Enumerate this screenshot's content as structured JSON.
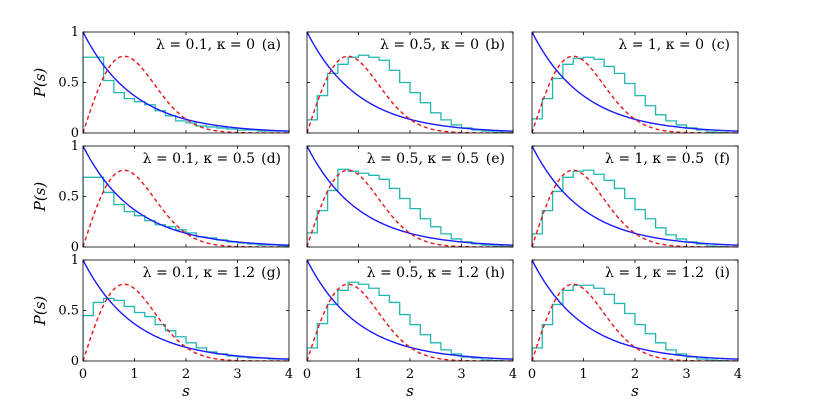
{
  "chart_data": {
    "type": "line",
    "layout": "3x3 grid of panels",
    "xlabel": "s",
    "ylabel": "P(s)",
    "xlim": [
      0,
      4
    ],
    "ylim": [
      0,
      1
    ],
    "xticks": [
      "0",
      "1",
      "2",
      "3",
      "4"
    ],
    "yticks": [
      "0",
      "0.5",
      "1"
    ],
    "colors": {
      "poisson": "#1a1aff",
      "wigner": "#e8161b",
      "histogram": "#22b8b0"
    },
    "curves": {
      "poisson": {
        "style": "solid",
        "formula": "exp(-s)"
      },
      "wigner": {
        "style": "dashed",
        "formula": "(pi/2) s exp(-pi s^2 / 4)"
      }
    },
    "panels": [
      {
        "tag": "(a)",
        "params": "λ = 0.1, κ = 0",
        "histogram": [
          0.75,
          0.75,
          0.52,
          0.4,
          0.34,
          0.31,
          0.28,
          0.22,
          0.17,
          0.12,
          0.1,
          0.07,
          0.06,
          0.05,
          0.04,
          0.03,
          0.03,
          0.02,
          0.02,
          0.02
        ]
      },
      {
        "tag": "(b)",
        "params": "λ = 0.5, κ = 0",
        "histogram": [
          0.13,
          0.37,
          0.59,
          0.68,
          0.75,
          0.77,
          0.75,
          0.72,
          0.62,
          0.5,
          0.4,
          0.3,
          0.2,
          0.13,
          0.08,
          0.05,
          0.03,
          0.02,
          0.01,
          0.005
        ]
      },
      {
        "tag": "(c)",
        "params": "λ = 1, κ = 0",
        "histogram": [
          0.14,
          0.34,
          0.54,
          0.68,
          0.74,
          0.75,
          0.73,
          0.66,
          0.59,
          0.49,
          0.37,
          0.27,
          0.18,
          0.12,
          0.08,
          0.05,
          0.03,
          0.01,
          0.005,
          0.0
        ]
      },
      {
        "tag": "(d)",
        "params": "λ = 0.1, κ = 0.5",
        "histogram": [
          0.69,
          0.69,
          0.54,
          0.42,
          0.35,
          0.31,
          0.26,
          0.22,
          0.2,
          0.17,
          0.14,
          0.1,
          0.09,
          0.07,
          0.05,
          0.04,
          0.03,
          0.02,
          0.02,
          0.01
        ]
      },
      {
        "tag": "(e)",
        "params": "λ = 0.5, κ = 0.5",
        "histogram": [
          0.14,
          0.36,
          0.56,
          0.77,
          0.75,
          0.73,
          0.71,
          0.67,
          0.58,
          0.48,
          0.38,
          0.28,
          0.2,
          0.13,
          0.08,
          0.05,
          0.03,
          0.02,
          0.01,
          0.005
        ]
      },
      {
        "tag": "(f)",
        "params": "λ = 1, κ = 0.5",
        "histogram": [
          0.13,
          0.36,
          0.55,
          0.69,
          0.75,
          0.76,
          0.72,
          0.66,
          0.58,
          0.48,
          0.37,
          0.28,
          0.19,
          0.12,
          0.08,
          0.05,
          0.03,
          0.01,
          0.005,
          0.0
        ]
      },
      {
        "tag": "(g)",
        "params": "λ = 0.1, κ = 1.2",
        "histogram": [
          0.45,
          0.58,
          0.62,
          0.6,
          0.54,
          0.48,
          0.44,
          0.36,
          0.3,
          0.24,
          0.18,
          0.13,
          0.09,
          0.07,
          0.05,
          0.04,
          0.03,
          0.03,
          0.02,
          0.02
        ]
      },
      {
        "tag": "(h)",
        "params": "λ = 0.5, κ = 1.2",
        "histogram": [
          0.13,
          0.37,
          0.56,
          0.7,
          0.78,
          0.76,
          0.72,
          0.65,
          0.58,
          0.46,
          0.36,
          0.26,
          0.18,
          0.11,
          0.07,
          0.04,
          0.03,
          0.01,
          0.005,
          0.0
        ]
      },
      {
        "tag": "(i)",
        "params": "λ = 1, κ = 1.2",
        "histogram": [
          0.13,
          0.36,
          0.56,
          0.7,
          0.75,
          0.75,
          0.72,
          0.66,
          0.57,
          0.47,
          0.36,
          0.27,
          0.18,
          0.11,
          0.07,
          0.04,
          0.02,
          0.01,
          0.005,
          0.0
        ]
      }
    ],
    "histogram_bin_width": 0.2,
    "grid": false,
    "legend": "none"
  }
}
